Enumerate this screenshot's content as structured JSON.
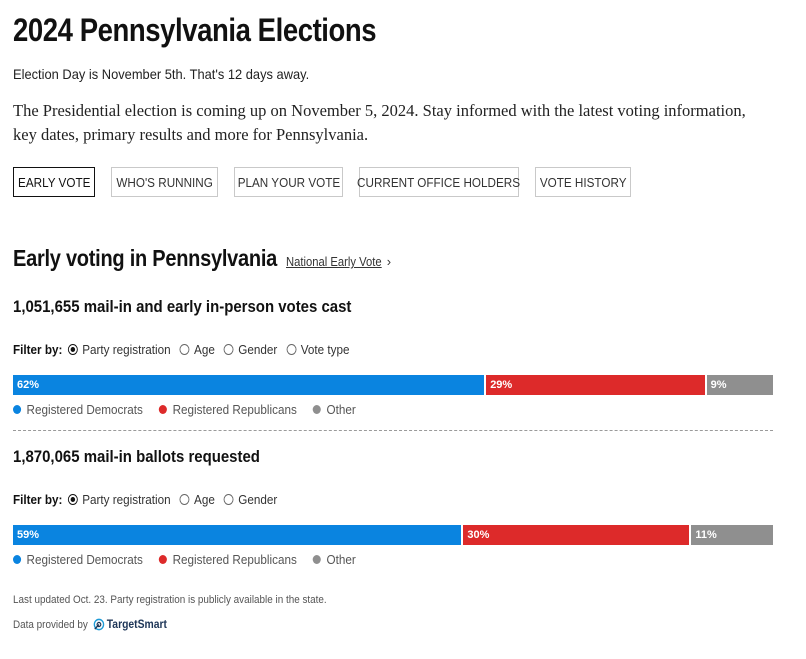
{
  "page": {
    "title": "2024 Pennsylvania Elections",
    "subline": "Election Day is November 5th. That's 12 days away.",
    "intro": "The Presidential election is coming up on November 5, 2024. Stay informed with the latest voting information, key dates, primary results and more for Pennsylvania."
  },
  "tabs": [
    {
      "label": "EARLY VOTE",
      "active": true
    },
    {
      "label": "WHO'S RUNNING"
    },
    {
      "label": "PLAN YOUR VOTE"
    },
    {
      "label": "CURRENT OFFICE HOLDERS"
    },
    {
      "label": "VOTE HISTORY"
    }
  ],
  "section": {
    "title": "Early voting in Pennsylvania",
    "link": "National Early Vote",
    "link_arrow": "›"
  },
  "block1": {
    "headline": "1,051,655 mail-in and early in-person votes cast",
    "filter_label": "Filter by:",
    "filters": [
      "Party registration",
      "Age",
      "Gender",
      "Vote type"
    ],
    "selected_filter": "Party registration",
    "segments": [
      {
        "label": "62%",
        "value": 62,
        "color": "#0a84e0"
      },
      {
        "label": "29%",
        "value": 29,
        "color": "#dd2a2a"
      },
      {
        "label": "9%",
        "value": 9,
        "color": "#8f8f8f"
      }
    ]
  },
  "block2": {
    "headline": "1,870,065 mail-in ballots requested",
    "filter_label": "Filter by:",
    "filters": [
      "Party registration",
      "Age",
      "Gender"
    ],
    "selected_filter": "Party registration",
    "segments": [
      {
        "label": "59%",
        "value": 59,
        "color": "#0a84e0"
      },
      {
        "label": "30%",
        "value": 30,
        "color": "#dd2a2a"
      },
      {
        "label": "11%",
        "value": 11,
        "color": "#8f8f8f"
      }
    ]
  },
  "legend": [
    {
      "label": "Registered Democrats",
      "color": "#0a84e0"
    },
    {
      "label": "Registered Republicans",
      "color": "#dd2a2a"
    },
    {
      "label": "Other",
      "color": "#8f8f8f"
    }
  ],
  "footer": {
    "updated": "Last updated Oct. 23. Party registration is publicly available in the state.",
    "provider_label": "Data provided by",
    "provider_name": "TargetSmart"
  }
}
